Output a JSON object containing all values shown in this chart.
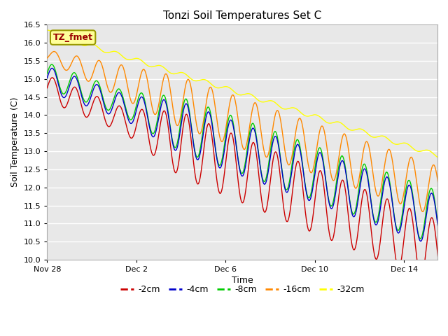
{
  "title": "Tonzi Soil Temperatures Set C",
  "xlabel": "Time",
  "ylabel": "Soil Temperature (C)",
  "ylim": [
    10.0,
    16.5
  ],
  "yticks": [
    10.0,
    10.5,
    11.0,
    11.5,
    12.0,
    12.5,
    13.0,
    13.5,
    14.0,
    14.5,
    15.0,
    15.5,
    16.0,
    16.5
  ],
  "bg_color": "#e8e8e8",
  "grid_color": "white",
  "colors": {
    "-2cm": "#cc0000",
    "-4cm": "#0000cc",
    "-8cm": "#00cc00",
    "-16cm": "#ff8800",
    "-32cm": "#ffff00"
  },
  "legend_label": "TZ_fmet",
  "legend_bg": "#ffff99",
  "legend_border": "#999900",
  "xtick_positions": [
    0,
    4,
    8,
    12,
    16
  ],
  "xtick_labels": [
    "Nov 28",
    "Dec 2",
    "Dec 6",
    "Dec 10",
    "Dec 14"
  ],
  "xlim": [
    0,
    17.5
  ]
}
